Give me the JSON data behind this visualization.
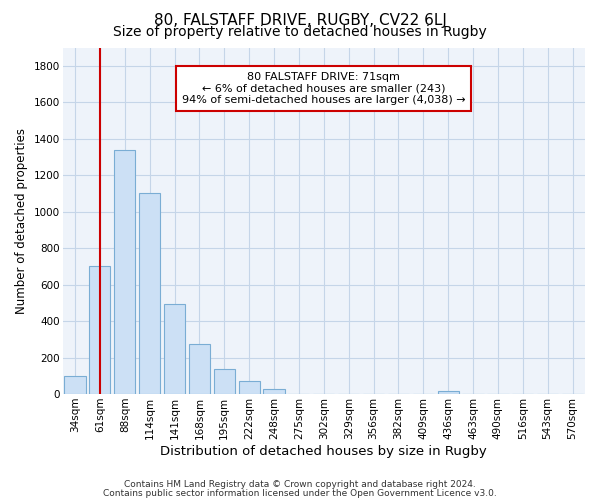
{
  "title": "80, FALSTAFF DRIVE, RUGBY, CV22 6LJ",
  "subtitle": "Size of property relative to detached houses in Rugby",
  "xlabel": "Distribution of detached houses by size in Rugby",
  "ylabel": "Number of detached properties",
  "categories": [
    "34sqm",
    "61sqm",
    "88sqm",
    "114sqm",
    "141sqm",
    "168sqm",
    "195sqm",
    "222sqm",
    "248sqm",
    "275sqm",
    "302sqm",
    "329sqm",
    "356sqm",
    "382sqm",
    "409sqm",
    "436sqm",
    "463sqm",
    "490sqm",
    "516sqm",
    "543sqm",
    "570sqm"
  ],
  "values": [
    100,
    700,
    1340,
    1100,
    495,
    275,
    140,
    70,
    28,
    0,
    0,
    0,
    0,
    0,
    0,
    15,
    0,
    0,
    0,
    0,
    0
  ],
  "bar_color": "#cce0f5",
  "bar_edge_color": "#7aadd4",
  "vline_x_index": 1,
  "vline_color": "#cc0000",
  "annotation_text": "80 FALSTAFF DRIVE: 71sqm\n← 6% of detached houses are smaller (243)\n94% of semi-detached houses are larger (4,038) →",
  "annotation_box_color": "#ffffff",
  "annotation_box_edge": "#cc0000",
  "ylim": [
    0,
    1900
  ],
  "yticks": [
    0,
    200,
    400,
    600,
    800,
    1000,
    1200,
    1400,
    1600,
    1800
  ],
  "footer1": "Contains HM Land Registry data © Crown copyright and database right 2024.",
  "footer2": "Contains public sector information licensed under the Open Government Licence v3.0.",
  "background_color": "#ffffff",
  "plot_bg_color": "#eef3fa",
  "grid_color": "#c5d5e8",
  "title_fontsize": 11,
  "subtitle_fontsize": 10,
  "tick_fontsize": 7.5,
  "xlabel_fontsize": 9.5,
  "ylabel_fontsize": 8.5,
  "annotation_fontsize": 8,
  "footer_fontsize": 6.5
}
